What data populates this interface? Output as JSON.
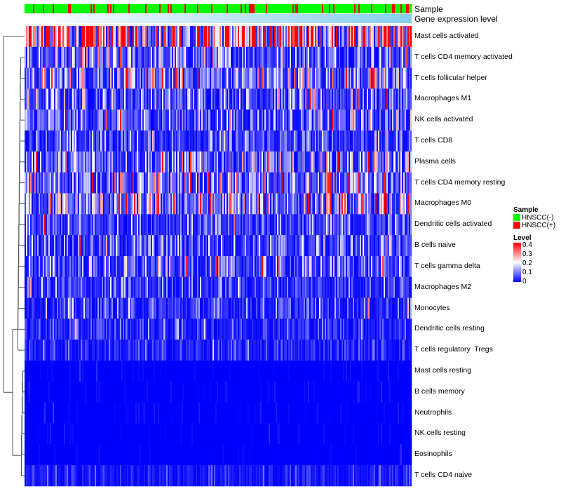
{
  "chart_data": {
    "type": "heatmap",
    "annotations": [
      {
        "name": "Sample"
      },
      {
        "name": "Gene expression level"
      }
    ],
    "rows": [
      "Mast cells activated",
      "T cells CD4 memory activated",
      "T cells follicular helper",
      "Macrophages M1",
      "NK cells activated",
      "T cells CD8",
      "Plasma cells",
      "T cells CD4 memory resting",
      "Macrophages M0",
      "Dendritic cells activated",
      "B cells naive",
      "T cells gamma delta",
      "Macrophages M2",
      "Monocytes",
      "Dendritic cells resting",
      "T cells regulatory  Tregs",
      "Mast cells resting",
      "B cells memory",
      "Neutrophils",
      "NK cells resting",
      "Eosinophils",
      "T cells CD4 naive"
    ],
    "row_mean_level": [
      0.3,
      0.09,
      0.12,
      0.08,
      0.08,
      0.06,
      0.1,
      0.1,
      0.12,
      0.06,
      0.07,
      0.07,
      0.05,
      0.045,
      0.04,
      0.03,
      0.01,
      0.012,
      0.012,
      0.01,
      0.006,
      0.02
    ],
    "n_samples": 276,
    "hnscc_pos_fraction": 0.2,
    "legend": {
      "sample_title": "Sample",
      "sample_entries": [
        {
          "label": "HNSCC(-)",
          "color": "#00ff00"
        },
        {
          "label": "HNSCC(+)",
          "color": "#ff0000"
        }
      ],
      "level_title": "Level",
      "level_ticks": [
        "0.4",
        "0.3",
        "0.2",
        "0.1",
        "0"
      ],
      "level_range": [
        0,
        0.4
      ],
      "colors": {
        "low": "#0000ff",
        "mid": "#ffffff",
        "high": "#ff0000"
      }
    },
    "gene_expression_colors": {
      "low": "#ffffff",
      "high": "#87ceeb"
    }
  }
}
